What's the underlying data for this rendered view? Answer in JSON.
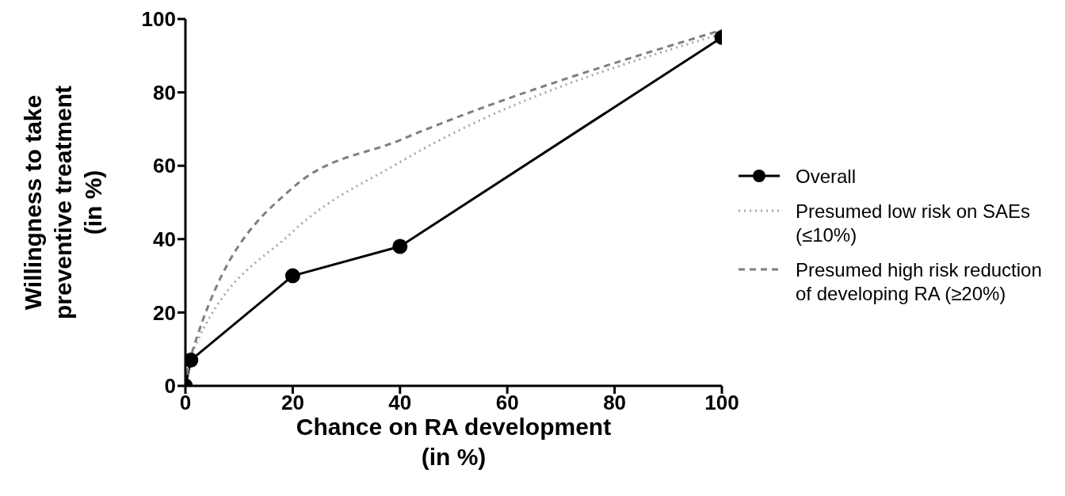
{
  "chart_data": {
    "type": "line",
    "xlabel": "Chance on RA development\n(in %)",
    "ylabel": "Willingness to take\npreventive treatment\n(in %)",
    "x": [
      0,
      1,
      20,
      40,
      100
    ],
    "xlim": [
      0,
      100
    ],
    "xticks": [
      0,
      20,
      40,
      60,
      80,
      100
    ],
    "ylim": [
      0,
      100
    ],
    "yticks": [
      0,
      20,
      40,
      60,
      80,
      100
    ],
    "grid": false,
    "legend": "right",
    "series": [
      {
        "name": "Overall",
        "color": "#000000",
        "marker": "circle",
        "line_style": "solid",
        "values": [
          0,
          7,
          30,
          38,
          95
        ]
      },
      {
        "name": "Presumed  low risk on  SAEs (≤10%)",
        "color": "#a6a6a6",
        "marker": "none",
        "line_style": "dotted",
        "values": [
          0,
          8,
          42,
          61,
          96
        ]
      },
      {
        "name": "Presumed high risk reduction of developing RA (≥20%)",
        "color": "#7f7f7f",
        "marker": "none",
        "line_style": "dashed",
        "values": [
          0,
          8,
          54,
          67,
          97
        ]
      }
    ]
  }
}
